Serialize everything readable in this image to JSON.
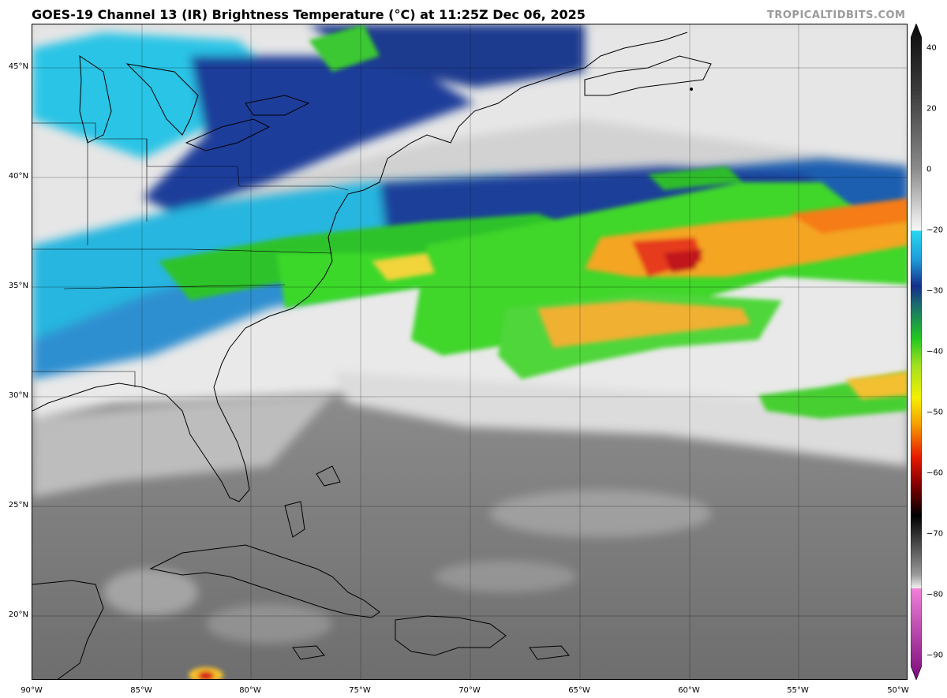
{
  "title": "GOES-19 Channel 13 (IR) Brightness Temperature (°C) at 11:25Z Dec 06, 2025",
  "credit": "TROPICALTIDBITS.COM",
  "lat_labels": [
    "45°N",
    "40°N",
    "35°N",
    "30°N",
    "25°N",
    "20°N"
  ],
  "lon_labels": [
    "90°W",
    "85°W",
    "80°W",
    "75°W",
    "70°W",
    "65°W",
    "60°W",
    "55°W",
    "50°W"
  ],
  "colorbar": {
    "ticks": [
      "40",
      "20",
      "0",
      "−20",
      "−30",
      "−40",
      "−50",
      "−60",
      "−70",
      "−80",
      "−90"
    ],
    "range": [
      -90,
      40
    ]
  },
  "map_extent": {
    "lon": [
      -90,
      -50
    ],
    "lat": [
      17,
      47
    ]
  }
}
